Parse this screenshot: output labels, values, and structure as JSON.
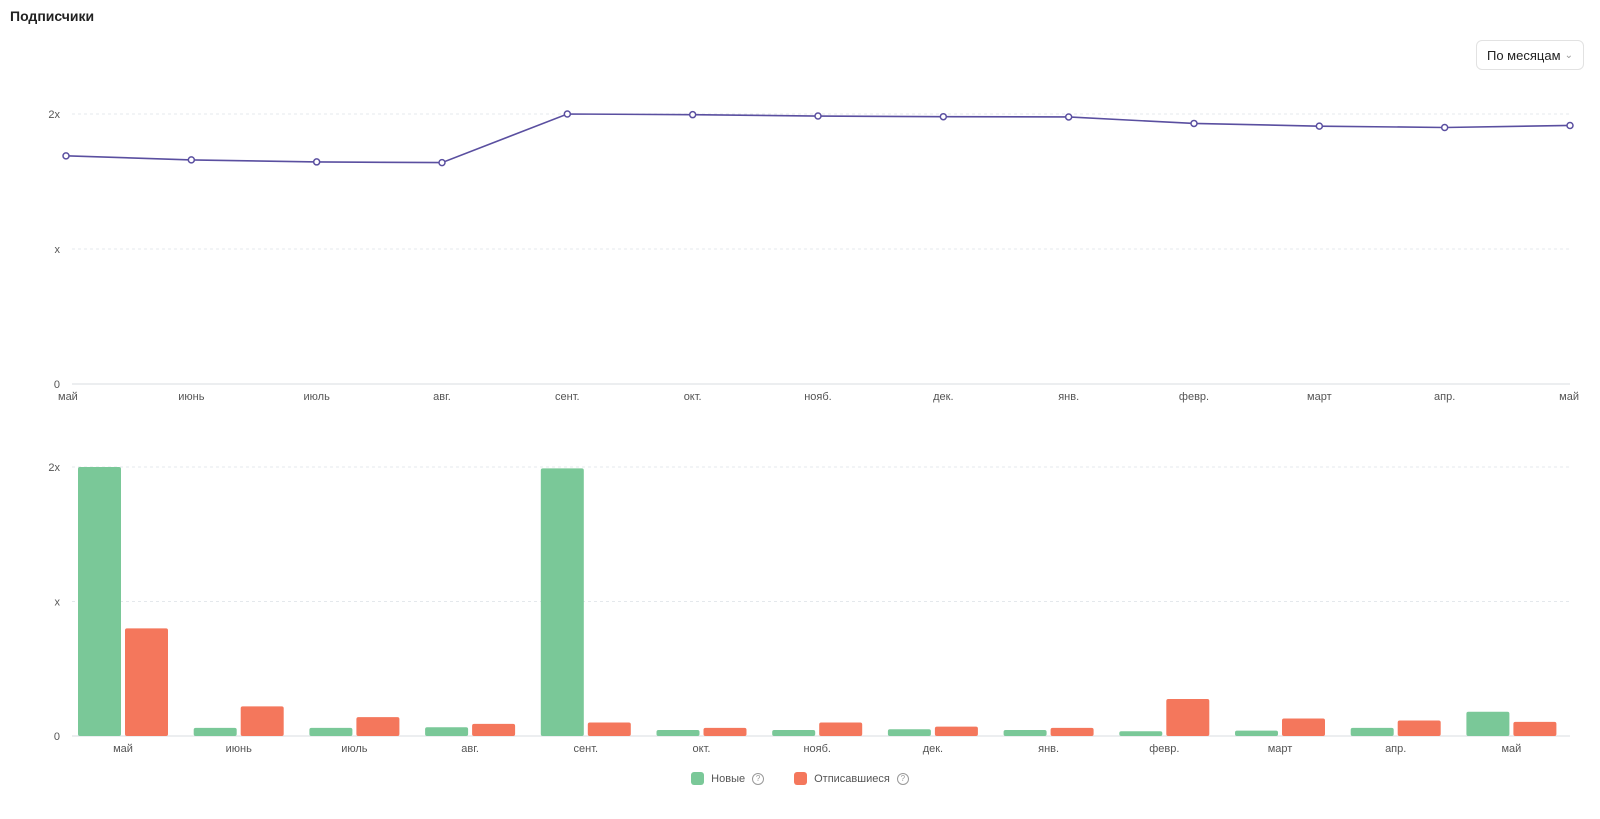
{
  "header": {
    "title": "Подписчики"
  },
  "period_select": {
    "value": "По месяцам",
    "icon": "chevron-down-icon"
  },
  "legend": {
    "new_label": "Новые",
    "unsub_label": "Отписавшиеся",
    "help_icon": "question-circle-icon"
  },
  "colors": {
    "line": "#5a4fa0",
    "new": "#7ac898",
    "unsub": "#f4775c",
    "grid": "#e4e8ec"
  },
  "chart_data": [
    {
      "type": "line",
      "title": "",
      "x": [
        "май",
        "июнь",
        "июль",
        "авг.",
        "сент.",
        "окт.",
        "нояб.",
        "дек.",
        "янв.",
        "февр.",
        "март",
        "апр.",
        "май"
      ],
      "y_ticks": [
        "0",
        "x",
        "2x"
      ],
      "ylim": [
        0,
        2
      ],
      "grid": true,
      "series": [
        {
          "values": [
            1.69,
            1.66,
            1.645,
            1.64,
            2.0,
            1.995,
            1.985,
            1.98,
            1.978,
            1.93,
            1.91,
            1.9,
            1.915
          ]
        }
      ]
    },
    {
      "type": "bar",
      "title": "",
      "categories": [
        "май",
        "июнь",
        "июль",
        "авг.",
        "сент.",
        "окт.",
        "нояб.",
        "дек.",
        "янв.",
        "февр.",
        "март",
        "апр.",
        "май"
      ],
      "y_ticks": [
        "0",
        "x",
        "2x"
      ],
      "ylim": [
        0,
        2
      ],
      "grid": true,
      "legend": "bottom-center",
      "series": [
        {
          "name": "Новые",
          "values": [
            2.0,
            0.06,
            0.06,
            0.065,
            1.99,
            0.045,
            0.045,
            0.05,
            0.045,
            0.035,
            0.04,
            0.06,
            0.18
          ]
        },
        {
          "name": "Отписавшиеся",
          "values": [
            0.8,
            0.22,
            0.14,
            0.09,
            0.1,
            0.06,
            0.1,
            0.07,
            0.06,
            0.275,
            0.13,
            0.115,
            0.105
          ]
        }
      ]
    }
  ]
}
